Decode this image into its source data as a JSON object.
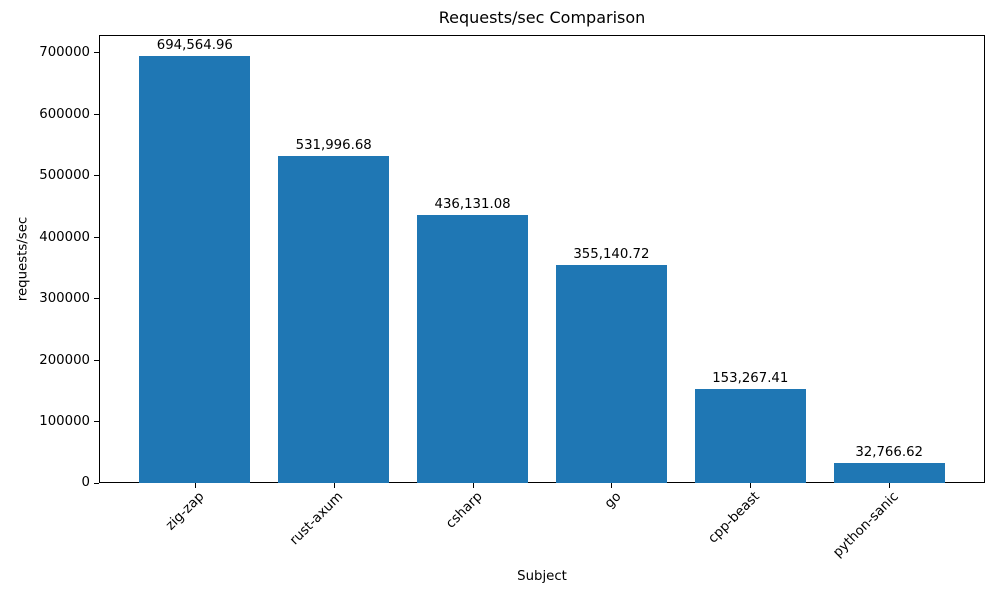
{
  "chart_data": {
    "type": "bar",
    "title": "Requests/sec Comparison",
    "xlabel": "Subject",
    "ylabel": "requests/sec",
    "categories": [
      "zig-zap",
      "rust-axum",
      "csharp",
      "go",
      "cpp-beast",
      "python-sanic"
    ],
    "values": [
      694564.96,
      531996.68,
      436131.08,
      355140.72,
      153267.41,
      32766.62
    ],
    "value_labels": [
      "694,564.96",
      "531,996.68",
      "436,131.08",
      "355,140.72",
      "153,267.41",
      "32,766.62"
    ],
    "yticks": [
      0,
      100000,
      200000,
      300000,
      400000,
      500000,
      600000,
      700000
    ],
    "ytick_labels": [
      "0",
      "100000",
      "200000",
      "300000",
      "400000",
      "500000",
      "600000",
      "700000"
    ],
    "ylim": [
      0,
      729293
    ],
    "bar_width_fraction": 0.8,
    "bar_color": "#1f77b4",
    "axis_color": "#000000",
    "background_color": "#ffffff",
    "grid": false,
    "legend": false,
    "xtick_label_rotation_deg": 45
  }
}
